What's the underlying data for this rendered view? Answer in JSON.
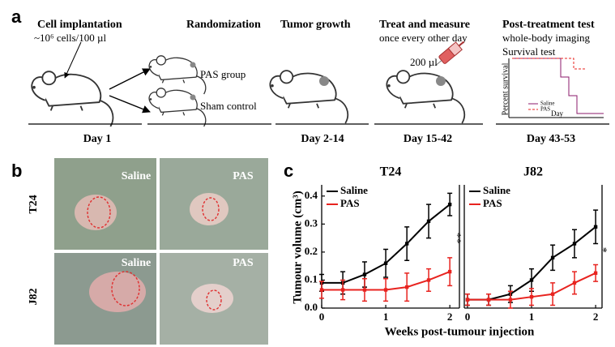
{
  "panel_a": {
    "label": "a",
    "steps": [
      {
        "title": "Cell implantation",
        "subtitle": "~10⁶ cells/100 µl"
      },
      {
        "title": "Randomization"
      },
      {
        "title": "Tumor growth"
      },
      {
        "title": "Treat and measure",
        "subtitle": "once every other day"
      },
      {
        "title": "Post-treatment test",
        "subtitle": "whole-body imaging",
        "subtitle2": "Survival test"
      }
    ],
    "groups": [
      "PAS group",
      "Sham control"
    ],
    "dose": "200 µl",
    "days": [
      "Day 1",
      "Day 2-14",
      "Day 15-42",
      "Day 43-53"
    ],
    "survival_inset": {
      "ylabel": "Percent survival",
      "xlabel": "Day",
      "legend": [
        "Saline",
        "PAS"
      ]
    }
  },
  "panel_b": {
    "label": "b",
    "columns": [
      "Saline",
      "PAS"
    ],
    "rows": [
      "T24",
      "J82"
    ]
  },
  "panel_c": {
    "label": "c",
    "ylabel": "Tumour volume (cm³)",
    "xlabel": "Weeks post-tumour injection"
  },
  "chart_data": [
    {
      "type": "line",
      "title": "T24",
      "x": [
        0,
        0.33,
        0.67,
        1,
        1.33,
        1.67,
        2
      ],
      "xlim": [
        0,
        2.15
      ],
      "xticks": [
        0,
        1,
        2
      ],
      "ylim": [
        0,
        0.44
      ],
      "yticks": [
        {
          "value": 0,
          "label": "0.0"
        },
        {
          "value": 0.1,
          "label": "0.1"
        },
        {
          "value": 0.2,
          "label": "0.2"
        },
        {
          "value": 0.3,
          "label": "0.3"
        },
        {
          "value": 0.4,
          "label": "0.4"
        }
      ],
      "legend": "upper left",
      "annotation": "**",
      "series": [
        {
          "name": "Saline",
          "color": "#000000",
          "values": [
            0.09,
            0.09,
            0.12,
            0.16,
            0.23,
            0.31,
            0.37
          ],
          "errors": [
            0.03,
            0.04,
            0.045,
            0.05,
            0.06,
            0.06,
            0.04
          ]
        },
        {
          "name": "PAS",
          "color": "#e8231f",
          "values": [
            0.065,
            0.065,
            0.065,
            0.065,
            0.075,
            0.1,
            0.13
          ],
          "errors": [
            0.03,
            0.035,
            0.04,
            0.04,
            0.05,
            0.04,
            0.05
          ]
        }
      ]
    },
    {
      "type": "line",
      "title": "J82",
      "x": [
        0,
        0.33,
        0.67,
        1,
        1.33,
        1.67,
        2
      ],
      "xlim": [
        -0.05,
        2.1
      ],
      "xticks": [
        0,
        1,
        2
      ],
      "ylim": [
        0,
        0.44
      ],
      "legend": "upper left",
      "annotation": "*",
      "series": [
        {
          "name": "Saline",
          "color": "#000000",
          "values": [
            0.03,
            0.03,
            0.05,
            0.1,
            0.18,
            0.23,
            0.29
          ],
          "errors": [
            0.02,
            0.02,
            0.03,
            0.04,
            0.045,
            0.05,
            0.06
          ]
        },
        {
          "name": "PAS",
          "color": "#e8231f",
          "values": [
            0.03,
            0.03,
            0.03,
            0.04,
            0.05,
            0.09,
            0.125
          ],
          "errors": [
            0.02,
            0.02,
            0.03,
            0.03,
            0.04,
            0.04,
            0.03
          ]
        }
      ]
    }
  ]
}
